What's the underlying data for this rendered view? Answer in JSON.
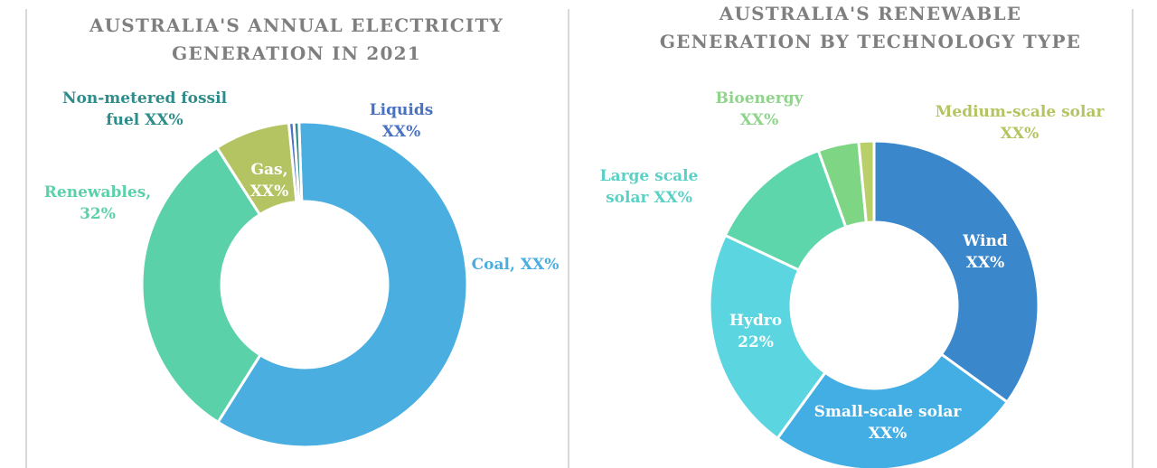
{
  "chart_data": [
    {
      "type": "pie",
      "title": [
        "AUSTRALIA'S ANNUAL ELECTRICITY",
        "GENERATION IN 2021"
      ],
      "slices": [
        {
          "name": "Coal",
          "value": 59.5,
          "label": [
            "Coal, XX%"
          ],
          "color": "#4aaee0"
        },
        {
          "name": "Renewables",
          "value": 32,
          "label": [
            "Renewables,",
            "32%"
          ],
          "color": "#5bd1aa"
        },
        {
          "name": "Gas",
          "value": 7.5,
          "label": [
            "Gas,",
            "XX%"
          ],
          "color": "#b5c462"
        },
        {
          "name": "Liquids",
          "value": 0.5,
          "label": [
            "Liquids",
            "XX%"
          ],
          "color": "#4a72c2"
        },
        {
          "name": "Non-metered fossil fuel",
          "value": 0.5,
          "label": [
            "Non-metered fossil",
            "fuel XX%"
          ],
          "color": "#2e8c8a"
        }
      ],
      "label_colors": {
        "Coal": "#4aaee0",
        "Renewables": "#5bd1aa",
        "Gas": "#ffffff",
        "Liquids": "#4a72c2",
        "Non-metered fossil fuel": "#2e8c8a"
      }
    },
    {
      "type": "pie",
      "title": [
        "AUSTRALIA'S RENEWABLE",
        "GENERATION BY TECHNOLOGY TYPE"
      ],
      "slices": [
        {
          "name": "Wind",
          "value": 35,
          "label": [
            "Wind",
            "XX%"
          ],
          "color": "#3b87cc"
        },
        {
          "name": "Small-scale solar",
          "value": 25,
          "label": [
            "Small-scale solar",
            "XX%"
          ],
          "color": "#43aee3"
        },
        {
          "name": "Hydro",
          "value": 22,
          "label": [
            "Hydro",
            "22%"
          ],
          "color": "#5bd5e0"
        },
        {
          "name": "Large scale solar",
          "value": 12.5,
          "label": [
            "Large scale",
            "solar XX%"
          ],
          "color": "#5dd6ac"
        },
        {
          "name": "Bioenergy",
          "value": 4,
          "label": [
            "Bioenergy",
            "XX%"
          ],
          "color": "#7ed584"
        },
        {
          "name": "Medium-scale solar",
          "value": 1.5,
          "label": [
            "Medium-scale solar",
            "XX%"
          ],
          "color": "#b9cf6a"
        }
      ],
      "label_colors": {
        "Wind": "#ffffff",
        "Small-scale solar": "#ffffff",
        "Hydro": "#ffffff",
        "Large scale solar": "#5bd1c6",
        "Bioenergy": "#8fd48a",
        "Medium-scale solar": "#b5c462"
      }
    }
  ]
}
